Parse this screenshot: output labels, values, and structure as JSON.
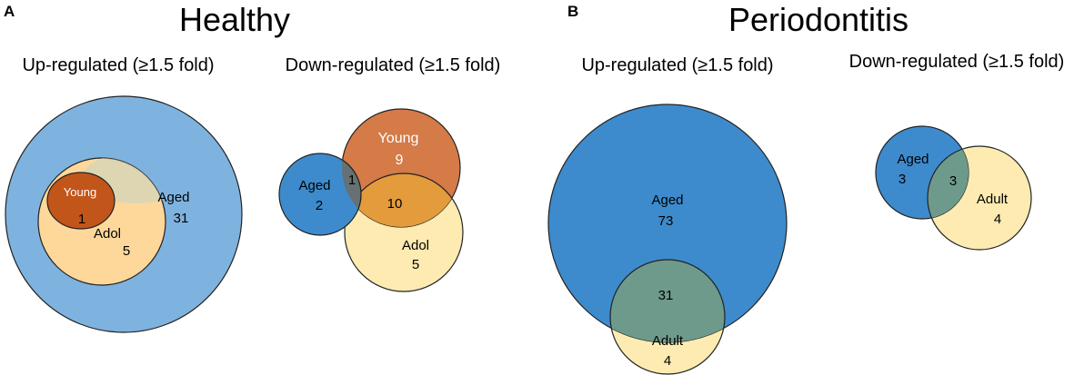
{
  "panels": {
    "a": {
      "letter": "A",
      "title": "Healthy",
      "up": {
        "subtitle": "Up-regulated (≥1.5 fold)",
        "aged_label": "Aged",
        "aged_count": "31",
        "adol_label": "Adol",
        "adol_count": "5",
        "young_label": "Young",
        "young_count": "1"
      },
      "down": {
        "subtitle": "Down-regulated (≥1.5 fold)",
        "aged_label": "Aged",
        "aged_count": "2",
        "aged_young_overlap": "1",
        "young_label": "Young",
        "young_count": "9",
        "young_adol_overlap": "10",
        "adol_label": "Adol",
        "adol_count": "5"
      }
    },
    "b": {
      "letter": "B",
      "title": "Periodontitis",
      "up": {
        "subtitle": "Up-regulated (≥1.5 fold)",
        "aged_label": "Aged",
        "aged_count": "73",
        "overlap_count": "31",
        "adult_label": "Adult",
        "adult_count": "4"
      },
      "down": {
        "subtitle": "Down-regulated (≥1.5 fold)",
        "aged_label": "Aged",
        "aged_count": "3",
        "overlap_count": "3",
        "adult_label": "Adult",
        "adult_count": "4"
      }
    }
  },
  "colors": {
    "aged_light": "#7fb3df",
    "aged": "#3d8bcc",
    "young": "#c2551a",
    "young_light": "#d47b48",
    "adol": "#fdd89a",
    "adult": "#fdebb1",
    "overlap_teal": "#6e9a8c",
    "overlap_orange": "#e49b3c"
  }
}
